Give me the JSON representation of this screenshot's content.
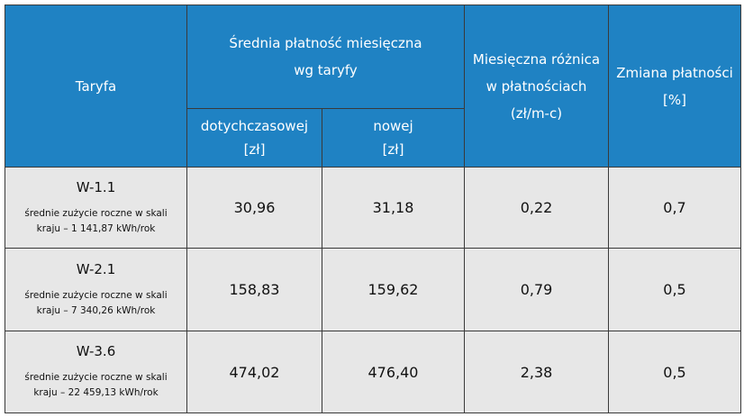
{
  "table": {
    "header": {
      "tariff": "Taryfa",
      "avg_payment": {
        "title": [
          "Średnia płatność miesięczna",
          "wg taryfy"
        ],
        "old": [
          "dotychczasowej",
          "[zł]"
        ],
        "new": [
          "nowej",
          "[zł]"
        ]
      },
      "difference": [
        "Miesięczna różnica",
        "w płatnościach",
        "(zł/m-c)"
      ],
      "change": [
        "Zmiana płatności",
        "[%]"
      ]
    },
    "rows": [
      {
        "tariff": "W-1.1",
        "note": [
          "średnie zużycie roczne w skali",
          "kraju – 1 141,87 kWh/rok"
        ],
        "cells": [
          "30,96",
          "31,18",
          "0,22",
          "0,7"
        ]
      },
      {
        "tariff": "W-2.1",
        "note": [
          "średnie zużycie roczne w skali",
          "kraju – 7 340,26 kWh/rok"
        ],
        "cells": [
          "158,83",
          "159,62",
          "0,79",
          "0,5"
        ]
      },
      {
        "tariff": "W-3.6",
        "note": [
          "średnie zużycie roczne w skali",
          "kraju – 22 459,13 kWh/rok"
        ],
        "cells": [
          "474,02",
          "476,40",
          "2,38",
          "0,5"
        ]
      }
    ]
  }
}
